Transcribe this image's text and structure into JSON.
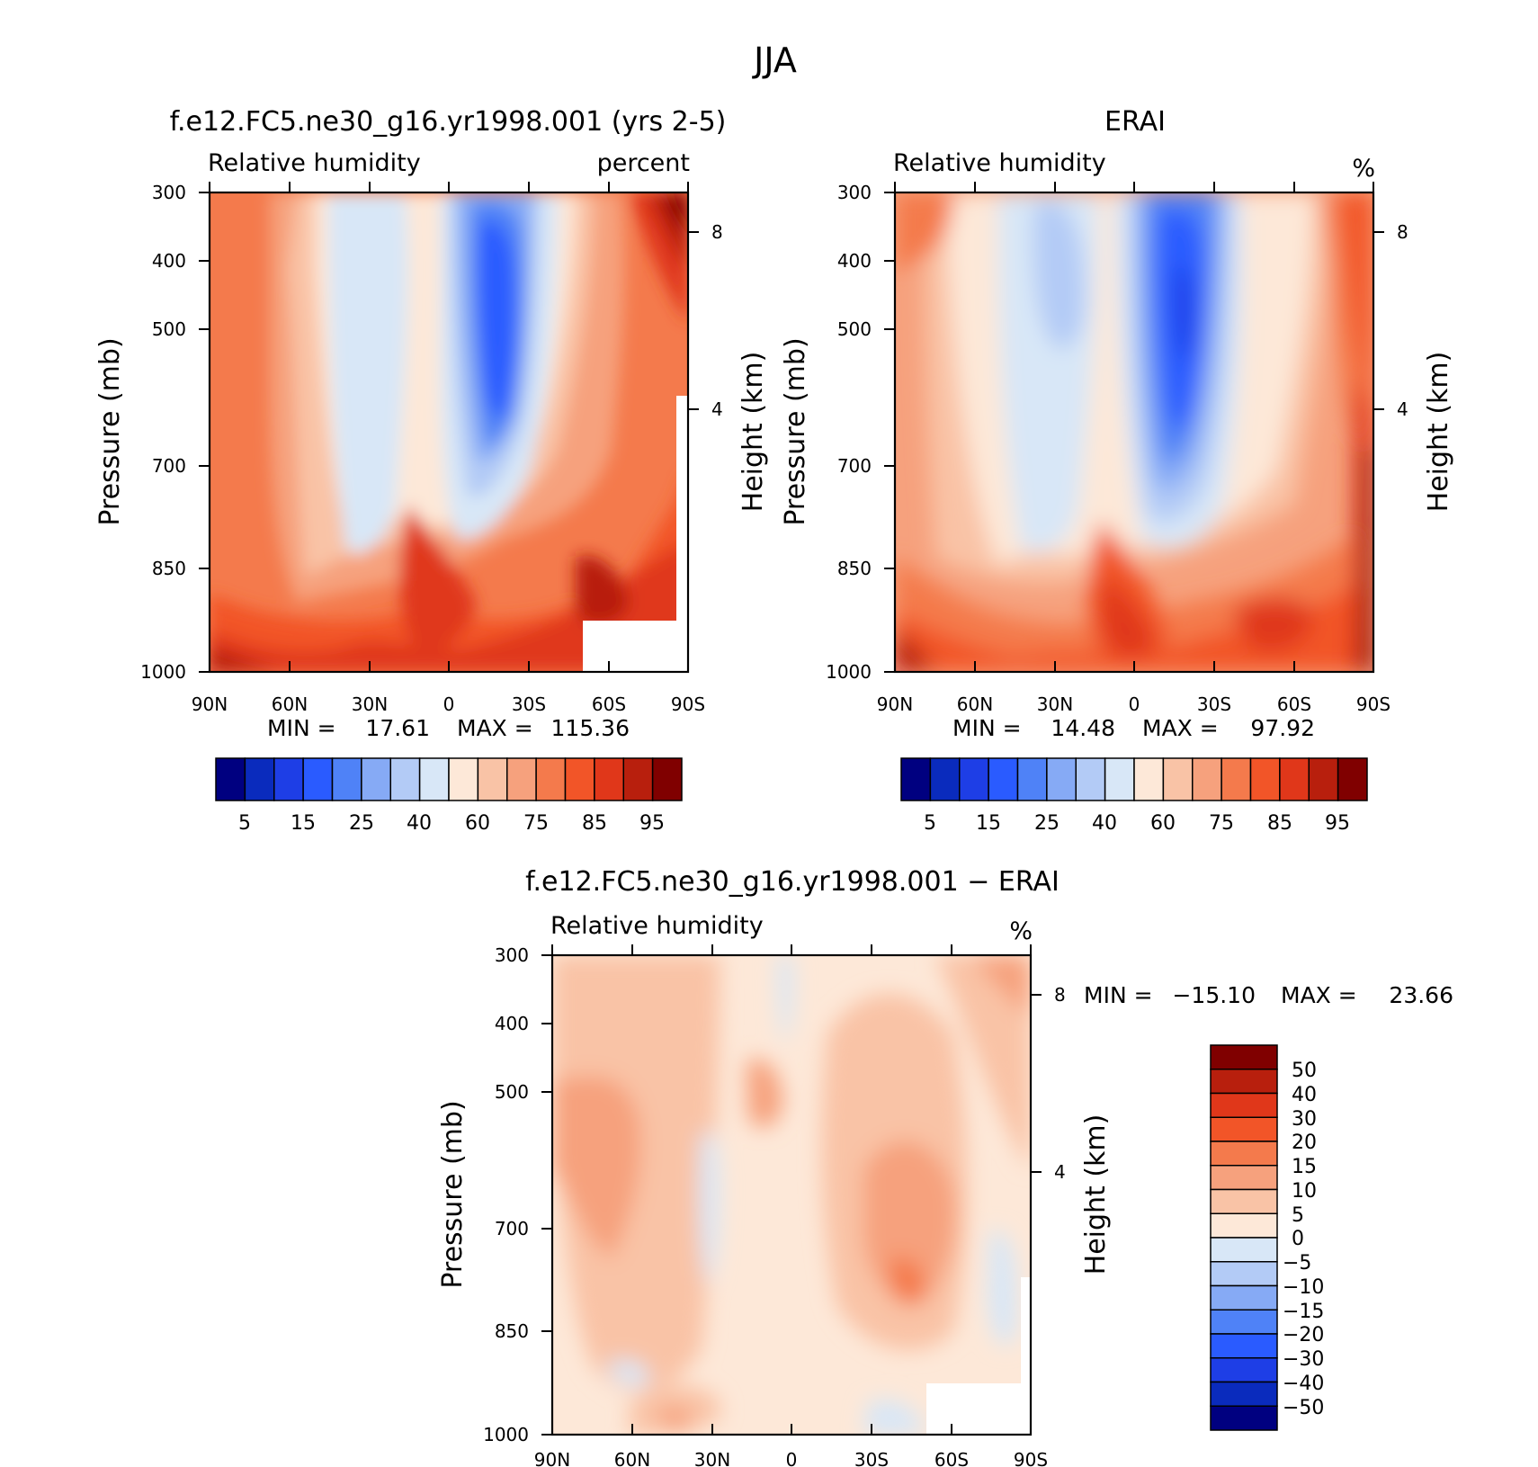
{
  "figure": {
    "title": "JJA"
  },
  "colors": {
    "abs": [
      "#000080",
      "#0a2bbd",
      "#1e3ee6",
      "#2a5bff",
      "#4f82f7",
      "#86aaf5",
      "#b3cbf6",
      "#d8e7f7",
      "#fde8d8",
      "#f9c3a6",
      "#f6a17d",
      "#f47a4c",
      "#f25528",
      "#e0371a",
      "#b81f0d",
      "#800000"
    ],
    "diff": [
      "#000080",
      "#0a2bbd",
      "#1e3ee6",
      "#2a5bff",
      "#4f82f7",
      "#86aaf5",
      "#b3cbf6",
      "#d8e7f7",
      "#fde8d8",
      "#f9c3a6",
      "#f6a17d",
      "#f47a4c",
      "#f25528",
      "#e0371a",
      "#b81f0d",
      "#800000"
    ]
  },
  "chart_data": [
    {
      "type": "heatmap",
      "title": "f.e12.FC5.ne30_g16.yr1998.001 (yrs 2-5)",
      "variable": "Relative humidity",
      "units": "percent",
      "ylabel": "Pressure (mb)",
      "y2label": "Height (km)",
      "x_ticks": [
        "90N",
        "60N",
        "30N",
        "0",
        "30S",
        "60S",
        "90S"
      ],
      "y_ticks": [
        "300",
        "400",
        "500",
        "700",
        "850",
        "1000"
      ],
      "y2_ticks": [
        "8",
        "4"
      ],
      "stats": {
        "min_label": "MIN =",
        "min": "17.61",
        "max_label": "MAX =",
        "max": "115.36"
      },
      "colorbar_labels": [
        "5",
        "15",
        "25",
        "40",
        "60",
        "75",
        "85",
        "95"
      ]
    },
    {
      "type": "heatmap",
      "title": "ERAI",
      "variable": "Relative humidity",
      "units": "%",
      "ylabel": "Pressure (mb)",
      "y2label": "Height (km)",
      "x_ticks": [
        "90N",
        "60N",
        "30N",
        "0",
        "30S",
        "60S",
        "90S"
      ],
      "y_ticks": [
        "300",
        "400",
        "500",
        "700",
        "850",
        "1000"
      ],
      "y2_ticks": [
        "8",
        "4"
      ],
      "stats": {
        "min_label": "MIN =",
        "min": "14.48",
        "max_label": "MAX =",
        "max": "97.92"
      },
      "colorbar_labels": [
        "5",
        "15",
        "25",
        "40",
        "60",
        "75",
        "85",
        "95"
      ]
    },
    {
      "type": "heatmap",
      "title": "f.e12.FC5.ne30_g16.yr1998.001 − ERAI",
      "variable": "Relative humidity",
      "units": "%",
      "ylabel": "Pressure (mb)",
      "y2label": "Height (km)",
      "x_ticks": [
        "90N",
        "60N",
        "30N",
        "0",
        "30S",
        "60S",
        "90S"
      ],
      "y_ticks": [
        "300",
        "400",
        "500",
        "700",
        "850",
        "1000"
      ],
      "y2_ticks": [
        "8",
        "4"
      ],
      "stats": {
        "min_label": "MIN =",
        "min": "−15.10",
        "max_label": "MAX =",
        "max": "23.66"
      },
      "colorbar_labels": [
        "50",
        "40",
        "30",
        "20",
        "15",
        "10",
        "5",
        "0",
        "−5",
        "−10",
        "−15",
        "−20",
        "−30",
        "−40",
        "−50"
      ]
    }
  ]
}
